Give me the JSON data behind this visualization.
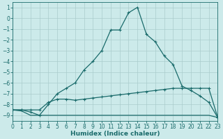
{
  "xlabel": "Humidex (Indice chaleur)",
  "xlim": [
    0,
    23
  ],
  "ylim": [
    -9.5,
    1.5
  ],
  "yticks": [
    1,
    0,
    -1,
    -2,
    -3,
    -4,
    -5,
    -6,
    -7,
    -8,
    -9
  ],
  "xticks": [
    0,
    1,
    2,
    3,
    4,
    5,
    6,
    7,
    8,
    9,
    10,
    11,
    12,
    13,
    14,
    15,
    16,
    17,
    18,
    19,
    20,
    21,
    22,
    23
  ],
  "background_color": "#cceaea",
  "grid_color": "#aacccc",
  "line_color": "#1a6b6b",
  "curve1_x": [
    0,
    1,
    2,
    3,
    4,
    5,
    6,
    7,
    8,
    9,
    10,
    11,
    12,
    13,
    14,
    15,
    16,
    17,
    18,
    19,
    20,
    21,
    22,
    23
  ],
  "curve1_y": [
    -8.5,
    -8.5,
    -8.7,
    -9.0,
    -8.0,
    -7.0,
    -6.5,
    -6.0,
    -4.8,
    -4.0,
    -3.0,
    -1.1,
    -1.1,
    0.5,
    1.0,
    -1.5,
    -2.2,
    -3.5,
    -4.3,
    -6.3,
    -6.7,
    -7.2,
    -7.8,
    -9.2
  ],
  "curve2_x": [
    0,
    1,
    2,
    3,
    4,
    5,
    6,
    7,
    8,
    9,
    10,
    11,
    12,
    13,
    14,
    15,
    16,
    17,
    18,
    19,
    20,
    21,
    22,
    23
  ],
  "curve2_y": [
    -8.5,
    -8.5,
    -8.5,
    -8.5,
    -7.8,
    -7.5,
    -7.5,
    -7.6,
    -7.5,
    -7.4,
    -7.3,
    -7.2,
    -7.1,
    -7.0,
    -6.9,
    -6.8,
    -6.7,
    -6.6,
    -6.5,
    -6.5,
    -6.5,
    -6.5,
    -6.5,
    -9.2
  ],
  "curve3_x": [
    0,
    1,
    2,
    3,
    4,
    5,
    6,
    7,
    8,
    9,
    10,
    11,
    12,
    13,
    14,
    15,
    16,
    17,
    18,
    19,
    20,
    21,
    22,
    23
  ],
  "curve3_y": [
    -8.5,
    -8.6,
    -9.0,
    -9.0,
    -9.0,
    -9.0,
    -9.0,
    -9.0,
    -9.0,
    -9.0,
    -9.0,
    -9.0,
    -9.0,
    -9.0,
    -9.0,
    -9.0,
    -9.0,
    -9.0,
    -9.0,
    -9.0,
    -9.0,
    -9.0,
    -9.0,
    -9.2
  ]
}
